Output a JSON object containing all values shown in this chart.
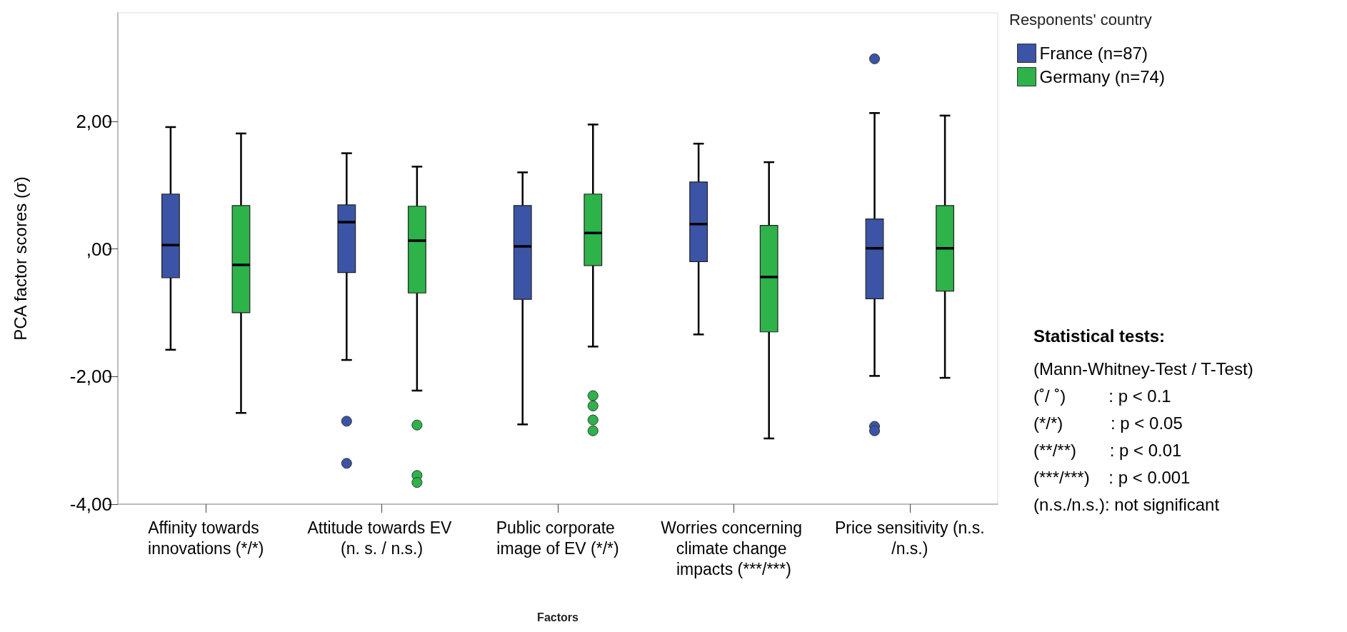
{
  "chart_data": {
    "type": "box",
    "xlabel": "Factors",
    "ylabel": "PCA factor scores (σ)",
    "legend_title": "Responents' country",
    "legend": "top right",
    "grid": false,
    "categories": [
      "Affinity towards innovations (*/*)",
      "Attitude towards EV (n. s. / n.s.)",
      "Public corporate image of EV (*/*)",
      "Worries concerning climate change impacts (***/***)",
      "Price sensitivity (n.s./n.s.)"
    ],
    "ylim": [
      -4,
      3.7
    ],
    "yticks": [
      {
        "value": -4,
        "label": "-4,00"
      },
      {
        "value": -2,
        "label": "-2,00"
      },
      {
        "value": 0,
        "label": ",00"
      },
      {
        "value": 2,
        "label": "2,00"
      }
    ],
    "series": [
      {
        "name": "France (n=87)",
        "color": "#3b54a6",
        "boxes": [
          {
            "low": -1.58,
            "q1": -0.45,
            "median": 0.06,
            "q3": 0.86,
            "high": 1.91
          },
          {
            "low": -1.74,
            "q1": -0.37,
            "median": 0.42,
            "q3": 0.69,
            "high": 1.5,
            "outliers": [
              -2.7,
              -3.36
            ]
          },
          {
            "low": -2.75,
            "q1": -0.79,
            "median": 0.04,
            "q3": 0.68,
            "high": 1.2
          },
          {
            "low": -1.34,
            "q1": -0.2,
            "median": 0.39,
            "q3": 1.05,
            "high": 1.65
          },
          {
            "low": -1.99,
            "q1": -0.78,
            "median": 0.01,
            "q3": 0.47,
            "high": 2.13,
            "outliers": [
              2.98,
              -2.78,
              -2.85
            ]
          }
        ]
      },
      {
        "name": "Germany (n=74)",
        "color": "#2eb24a",
        "boxes": [
          {
            "low": -2.57,
            "q1": -1.0,
            "median": -0.25,
            "q3": 0.68,
            "high": 1.81
          },
          {
            "low": -2.22,
            "q1": -0.69,
            "median": 0.13,
            "q3": 0.67,
            "high": 1.29,
            "outliers": [
              -2.76,
              -3.55,
              -3.66
            ]
          },
          {
            "low": -1.53,
            "q1": -0.26,
            "median": 0.25,
            "q3": 0.86,
            "high": 1.95,
            "outliers": [
              -2.3,
              -2.46,
              -2.68,
              -2.85
            ]
          },
          {
            "low": -2.97,
            "q1": -1.3,
            "median": -0.44,
            "q3": 0.37,
            "high": 1.36
          },
          {
            "low": -2.02,
            "q1": -0.66,
            "median": 0.01,
            "q3": 0.68,
            "high": 2.09
          }
        ]
      }
    ],
    "annotations": [
      "Statistical tests:",
      "(Mann-Whitney-Test / T-Test)",
      "(˚/ ˚)         : p < 0.1",
      "(*/*)          : p < 0.05",
      "(**/**)       : p < 0.01",
      "(***/***)    : p < 0.001",
      "(n.s./n.s.): not significant"
    ]
  }
}
